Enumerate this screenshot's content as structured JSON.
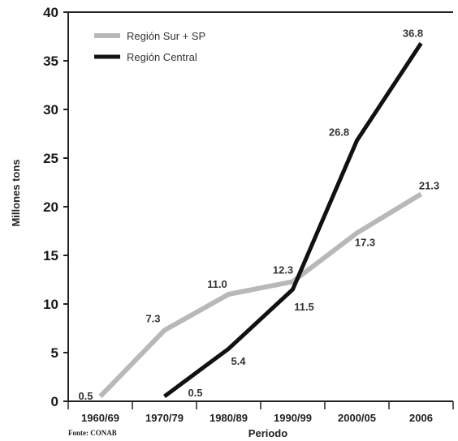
{
  "chart_data": {
    "type": "line",
    "categories": [
      "1960/69",
      "1970/79",
      "1980/89",
      "1990/99",
      "2000/05",
      "2006"
    ],
    "series": [
      {
        "name": "Región Sur + SP",
        "color": "#b8b8b8",
        "values": [
          0.5,
          7.3,
          11.0,
          12.3,
          17.3,
          21.3
        ]
      },
      {
        "name": "Región Central",
        "color": "#111111",
        "values": [
          null,
          0.5,
          5.4,
          11.5,
          26.8,
          36.8
        ]
      }
    ],
    "data_labels": [
      {
        "series": 0,
        "index": 0,
        "text": "0.5"
      },
      {
        "series": 0,
        "index": 1,
        "text": "7.3"
      },
      {
        "series": 0,
        "index": 2,
        "text": "11.0"
      },
      {
        "series": 0,
        "index": 3,
        "text": "12.3"
      },
      {
        "series": 0,
        "index": 4,
        "text": "17.3"
      },
      {
        "series": 0,
        "index": 5,
        "text": "21.3"
      },
      {
        "series": 1,
        "index": 1,
        "text": "0.5"
      },
      {
        "series": 1,
        "index": 2,
        "text": "5.4"
      },
      {
        "series": 1,
        "index": 3,
        "text": "11.5"
      },
      {
        "series": 1,
        "index": 4,
        "text": "26.8"
      },
      {
        "series": 1,
        "index": 5,
        "text": "36.8"
      }
    ],
    "ylabel": "Millones tons",
    "xlabel": "Periodo",
    "ylim": [
      0,
      40
    ],
    "yticks": [
      "0",
      "5",
      "10",
      "15",
      "20",
      "25",
      "30",
      "35",
      "40"
    ],
    "grid": false,
    "legend_position": "top-left"
  },
  "source": "Fonte: CONAB"
}
